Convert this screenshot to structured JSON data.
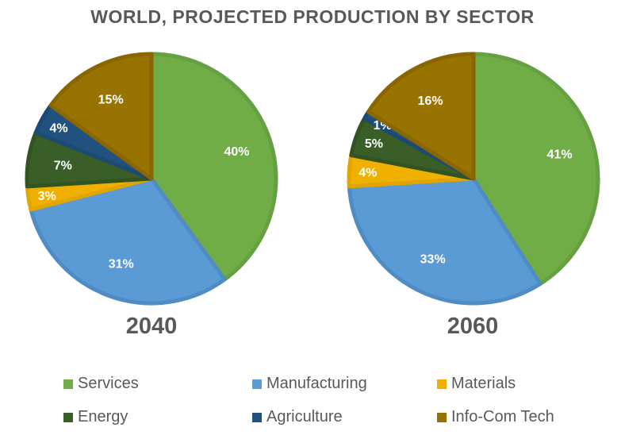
{
  "chart_data": {
    "type": "pie",
    "title": "WORLD, PROJECTED PRODUCTION BY SECTOR",
    "categories": [
      "Services",
      "Manufacturing",
      "Materials",
      "Energy",
      "Agriculture",
      "Info-Com Tech"
    ],
    "colors": [
      "#70ad47",
      "#5b9bd5",
      "#f0b000",
      "#3a5e28",
      "#21527f",
      "#997300"
    ],
    "border_colors": [
      "#65a043",
      "#4f8cc4",
      "#e0a500",
      "#335421",
      "#1d4a72",
      "#8a6600"
    ],
    "legend_position": "bottom",
    "series": [
      {
        "name": "2040",
        "values": [
          40,
          31,
          3,
          7,
          4,
          15
        ],
        "labels": [
          "40%",
          "31%",
          "3%",
          "7%",
          "4%",
          "15%"
        ]
      },
      {
        "name": "2060",
        "values": [
          41,
          33,
          4,
          5,
          1,
          16
        ],
        "labels": [
          "41%",
          "33%",
          "4%",
          "5%",
          "1%",
          "16%"
        ]
      }
    ]
  }
}
